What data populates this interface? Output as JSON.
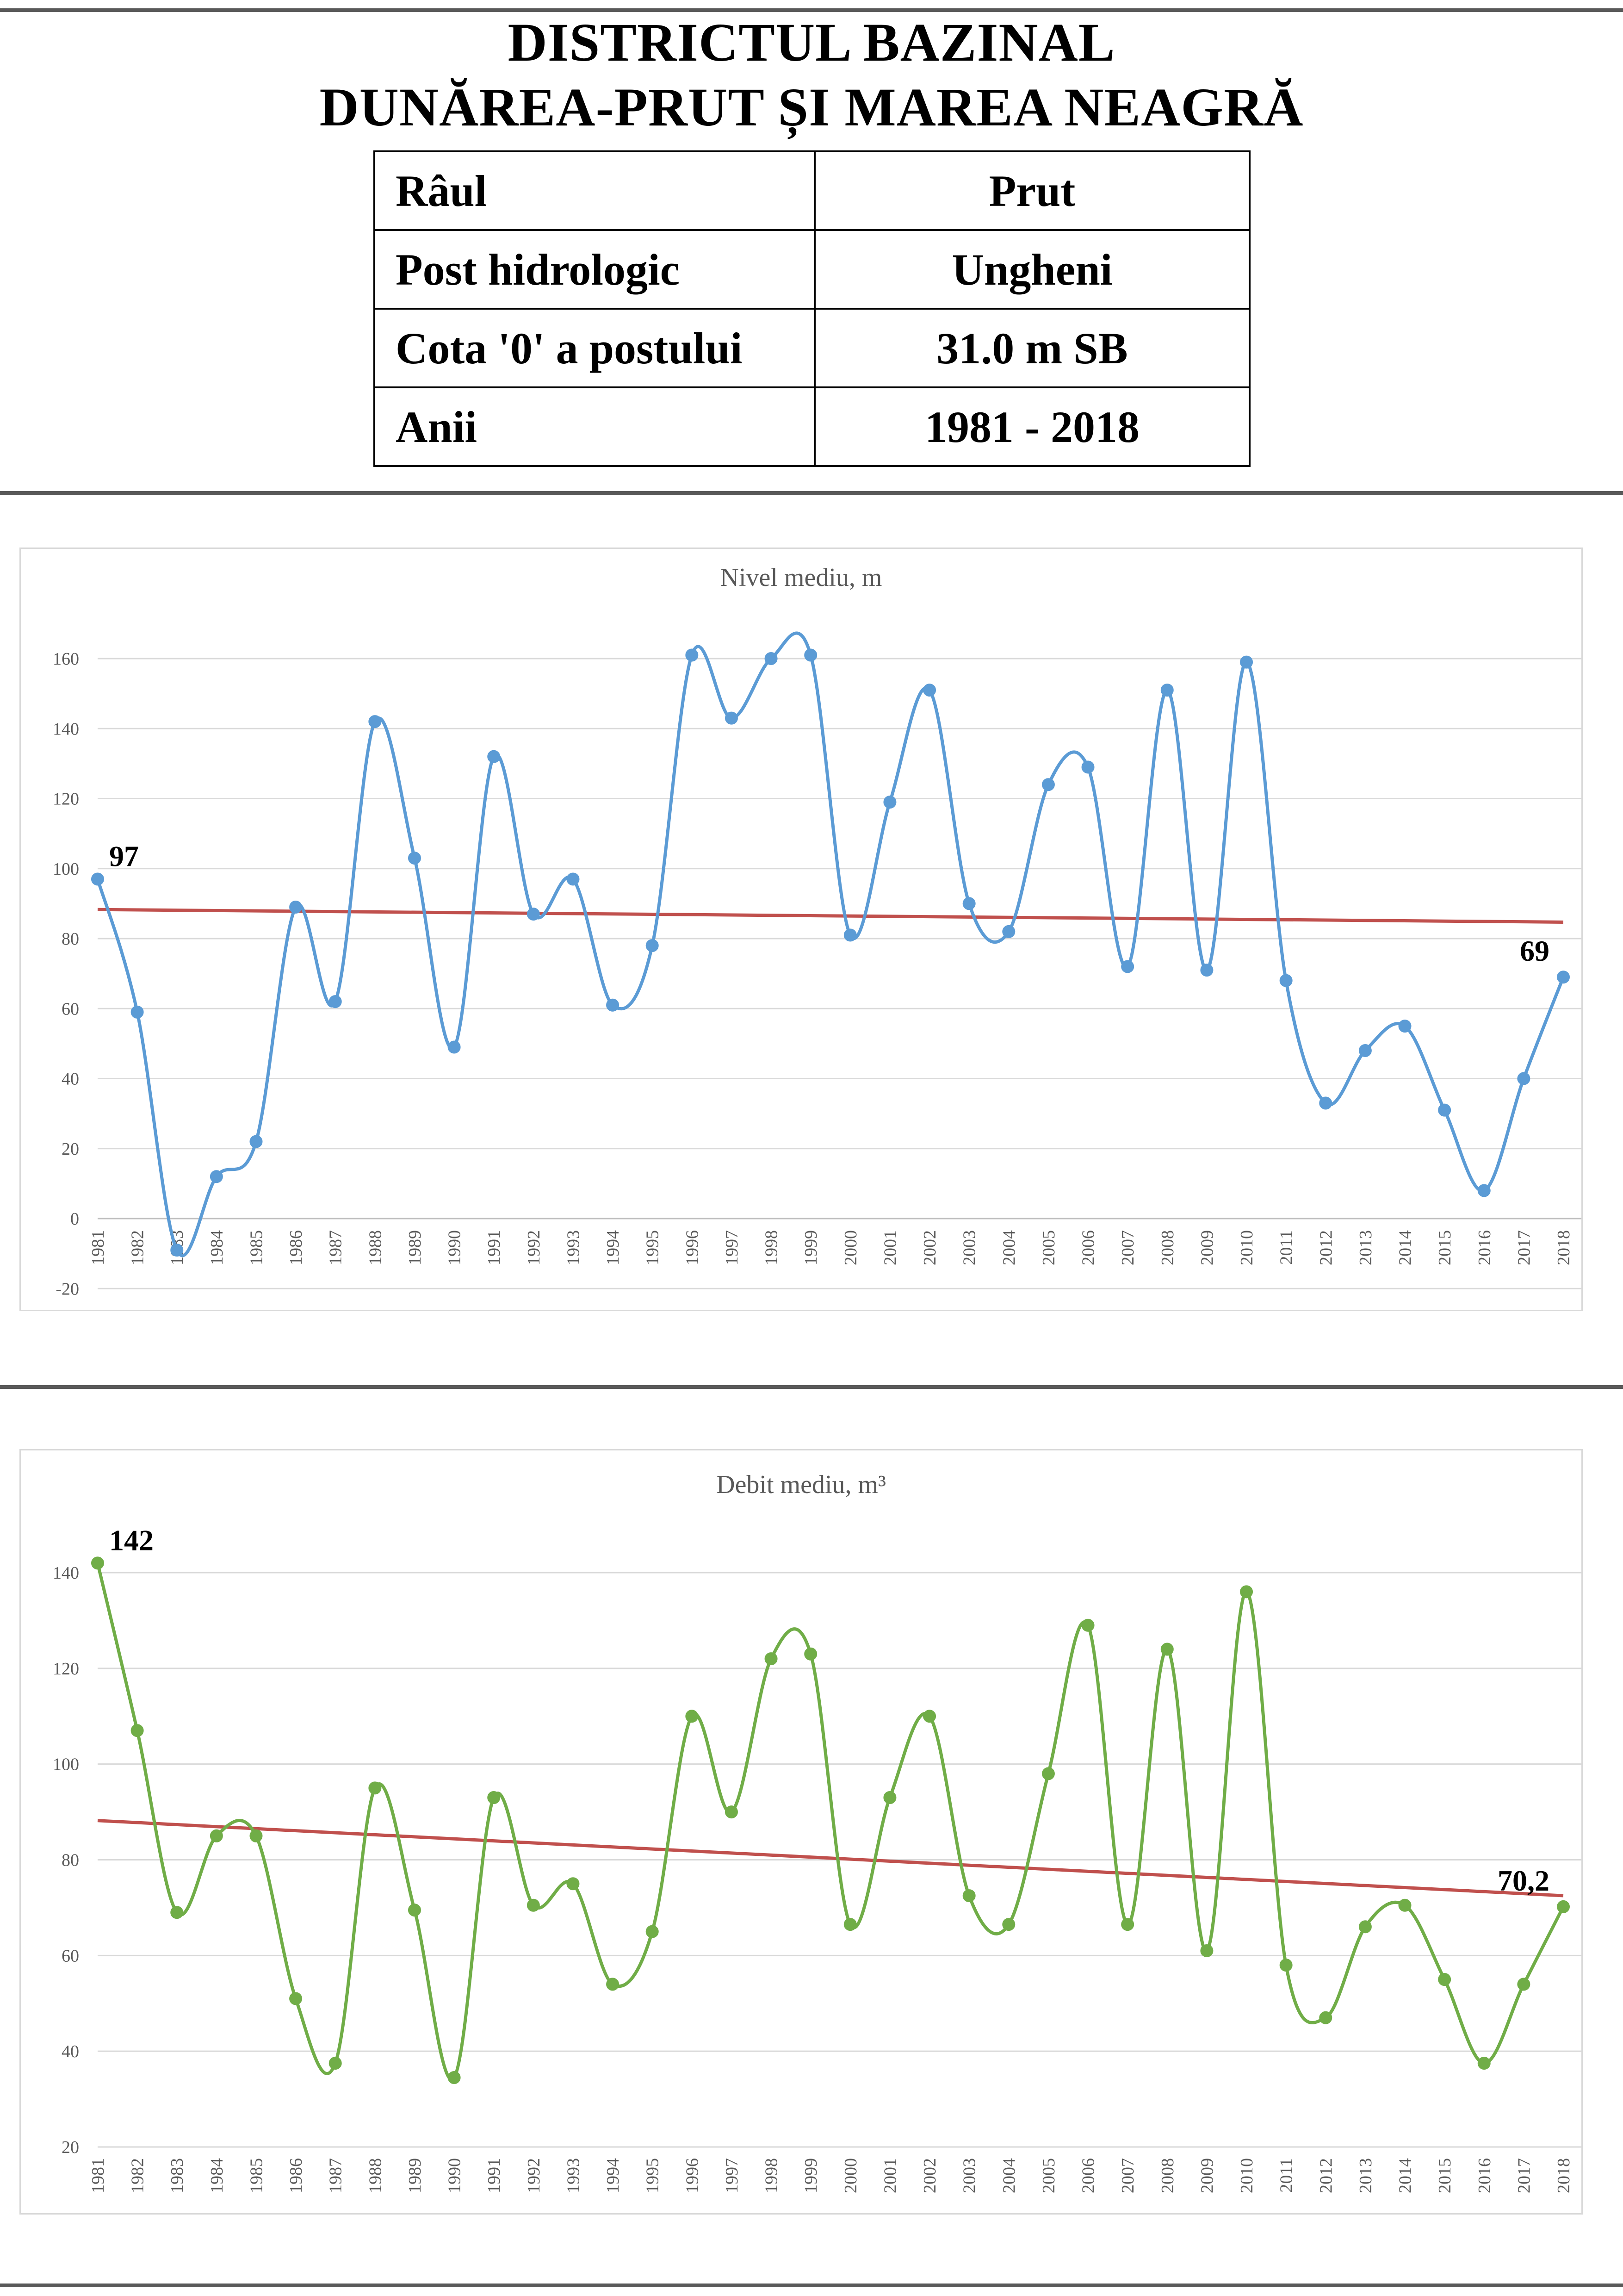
{
  "header": {
    "title_line1": "DISTRICTUL BAZINAL",
    "title_line2": "DUNĂREA-PRUT ȘI MAREA NEAGRĂ",
    "info_rows": [
      {
        "label": "Râul",
        "value": "Prut"
      },
      {
        "label": "Post hidrologic",
        "value": "Ungheni"
      },
      {
        "label": "Cota '0' a postului",
        "value": "31.0 m SB"
      },
      {
        "label": "Anii",
        "value": "1981 - 2018"
      }
    ]
  },
  "chart_data": [
    {
      "type": "line",
      "title": "Nivel mediu, m",
      "x": [
        "1981",
        "1982",
        "1983",
        "1984",
        "1985",
        "1986",
        "1987",
        "1988",
        "1989",
        "1990",
        "1991",
        "1992",
        "1993",
        "1994",
        "1995",
        "1996",
        "1997",
        "1998",
        "1999",
        "2000",
        "2001",
        "2002",
        "2003",
        "2004",
        "2005",
        "2006",
        "2007",
        "2008",
        "2009",
        "2010",
        "2011",
        "2012",
        "2013",
        "2014",
        "2015",
        "2016",
        "2017",
        "2018"
      ],
      "series": [
        {
          "color": "#5b9bd5",
          "smooth": true,
          "markers": true,
          "values": [
            97,
            59,
            -9,
            12,
            22,
            89,
            62,
            142,
            103,
            49,
            132,
            87,
            97,
            61,
            78,
            161,
            143,
            160,
            161,
            81,
            119,
            151,
            90,
            82,
            124,
            129,
            72,
            151,
            71,
            159,
            68,
            33,
            48,
            55,
            31,
            8,
            40,
            69
          ]
        }
      ],
      "trendline": {
        "color": "#c0504d",
        "start": 88.3,
        "end": 84.7
      },
      "data_labels": [
        {
          "x": "1981",
          "text": "97"
        },
        {
          "x": "2018",
          "text": "69"
        }
      ],
      "yticks": [
        -20,
        0,
        20,
        40,
        60,
        80,
        100,
        120,
        140,
        160
      ],
      "ylim": [
        -20,
        170
      ],
      "grid": true,
      "xlabel": "",
      "ylabel": ""
    },
    {
      "type": "line",
      "title": "Debit mediu, m³",
      "x": [
        "1981",
        "1982",
        "1983",
        "1984",
        "1985",
        "1986",
        "1987",
        "1988",
        "1989",
        "1990",
        "1991",
        "1992",
        "1993",
        "1994",
        "1995",
        "1996",
        "1997",
        "1998",
        "1999",
        "2000",
        "2001",
        "2002",
        "2003",
        "2004",
        "2005",
        "2006",
        "2007",
        "2008",
        "2009",
        "2010",
        "2011",
        "2012",
        "2013",
        "2014",
        "2015",
        "2016",
        "2017",
        "2018"
      ],
      "series": [
        {
          "color": "#70ad47",
          "smooth": true,
          "markers": true,
          "values": [
            142,
            107,
            69,
            85,
            85,
            51,
            37.5,
            95,
            69.5,
            34.5,
            93,
            70.5,
            75,
            54,
            65,
            110,
            90,
            122,
            123,
            66.5,
            93,
            110,
            72.5,
            66.5,
            98,
            129,
            66.5,
            124,
            61,
            136,
            58,
            47,
            66,
            70.5,
            55,
            37.5,
            54,
            70.2
          ]
        }
      ],
      "trendline": {
        "color": "#c0504d",
        "start": 88.2,
        "end": 72.5
      },
      "data_labels": [
        {
          "x": "1981",
          "text": "142"
        },
        {
          "x": "2018",
          "text": "70,2"
        }
      ],
      "yticks": [
        20,
        40,
        60,
        80,
        100,
        120,
        140
      ],
      "ylim": [
        20,
        145
      ],
      "grid": true,
      "xlabel": "",
      "ylabel": ""
    }
  ]
}
